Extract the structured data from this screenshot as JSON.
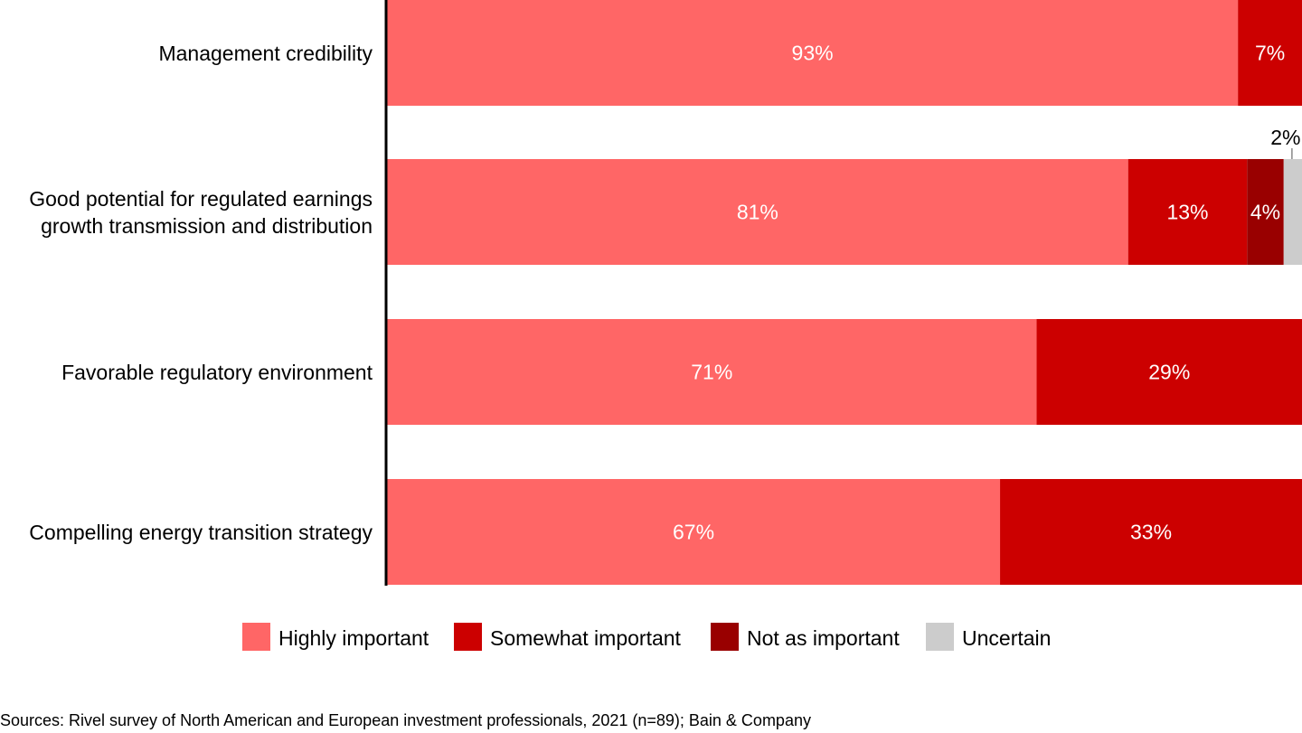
{
  "chart_data": {
    "type": "bar",
    "orientation": "horizontal",
    "stacked": true,
    "categories": [
      "Management credibility",
      "Good potential for regulated earnings growth transmission and distribution",
      "Favorable regulatory environment",
      "Compelling energy transition strategy"
    ],
    "category_lines": [
      [
        "Management credibility"
      ],
      [
        "Good potential for regulated earnings",
        "growth transmission and distribution"
      ],
      [
        "Favorable regulatory environment"
      ],
      [
        "Compelling energy transition strategy"
      ]
    ],
    "xlim": [
      0,
      100
    ],
    "series": [
      {
        "name": "Highly important",
        "color": "#FF6666",
        "values": [
          93,
          81,
          71,
          67
        ],
        "labels": [
          "93%",
          "81%",
          "71%",
          "67%"
        ]
      },
      {
        "name": "Somewhat important",
        "color": "#CC0000",
        "values": [
          7,
          13,
          29,
          33
        ],
        "labels": [
          "7%",
          "13%",
          "29%",
          "33%"
        ]
      },
      {
        "name": "Not as important",
        "color": "#990000",
        "values": [
          0,
          4,
          0,
          0
        ],
        "labels": [
          "",
          "4%",
          "",
          ""
        ]
      },
      {
        "name": "Uncertain",
        "color": "#CCCCCC",
        "values": [
          0,
          2,
          0,
          0
        ],
        "labels": [
          "",
          "2%",
          "",
          ""
        ]
      }
    ],
    "legend_position": "bottom",
    "grid": false
  },
  "source": "Sources: Rivel survey of North American and European investment professionals, 2021 (n=89); Bain & Company"
}
